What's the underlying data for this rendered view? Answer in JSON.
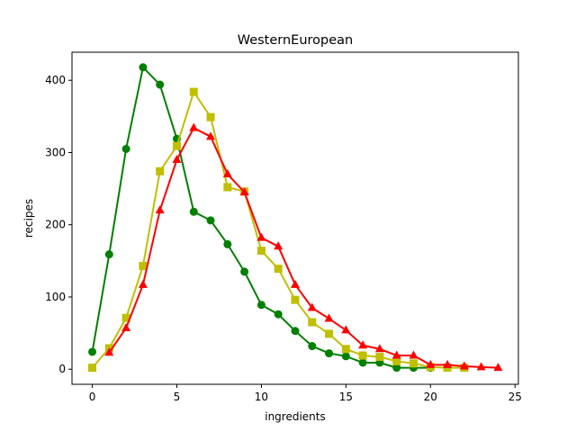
{
  "chart_data": {
    "type": "line",
    "title": "WesternEuropean",
    "xlabel": "ingredients",
    "ylabel": "recipes",
    "xlim": [
      -1.2,
      25.2
    ],
    "ylim": [
      -20.9,
      438.9
    ],
    "xticks": [
      0,
      5,
      10,
      15,
      20,
      25
    ],
    "yticks": [
      0,
      100,
      200,
      300,
      400
    ],
    "grid": false,
    "legend": "none",
    "series": [
      {
        "color": "#008000",
        "marker": "circle",
        "x": [
          0,
          1,
          2,
          3,
          4,
          5,
          6,
          7,
          8,
          9,
          10,
          11,
          12,
          13,
          14,
          15,
          16,
          17,
          18,
          19,
          20
        ],
        "y": [
          24,
          159,
          305,
          418,
          394,
          319,
          218,
          206,
          173,
          135,
          89,
          76,
          53,
          32,
          22,
          18,
          9,
          9,
          2,
          2,
          2
        ]
      },
      {
        "color": "#bfbf00",
        "marker": "square",
        "x": [
          0,
          1,
          2,
          3,
          4,
          5,
          6,
          7,
          8,
          9,
          10,
          11,
          12,
          13,
          14,
          15,
          16,
          17,
          18,
          19,
          20,
          21,
          22
        ],
        "y": [
          2,
          29,
          71,
          143,
          274,
          309,
          384,
          349,
          252,
          246,
          164,
          139,
          96,
          65,
          49,
          28,
          19,
          17,
          11,
          8,
          3,
          2,
          2
        ]
      },
      {
        "color": "#ff0000",
        "marker": "triangle",
        "x": [
          1,
          2,
          3,
          4,
          5,
          6,
          7,
          8,
          9,
          10,
          11,
          12,
          13,
          14,
          15,
          16,
          17,
          18,
          19,
          20,
          21,
          22,
          23,
          24
        ],
        "y": [
          23,
          57,
          117,
          220,
          290,
          334,
          322,
          270,
          245,
          182,
          170,
          117,
          85,
          70,
          54,
          33,
          28,
          19,
          19,
          6,
          6,
          4,
          3,
          2
        ]
      }
    ]
  }
}
